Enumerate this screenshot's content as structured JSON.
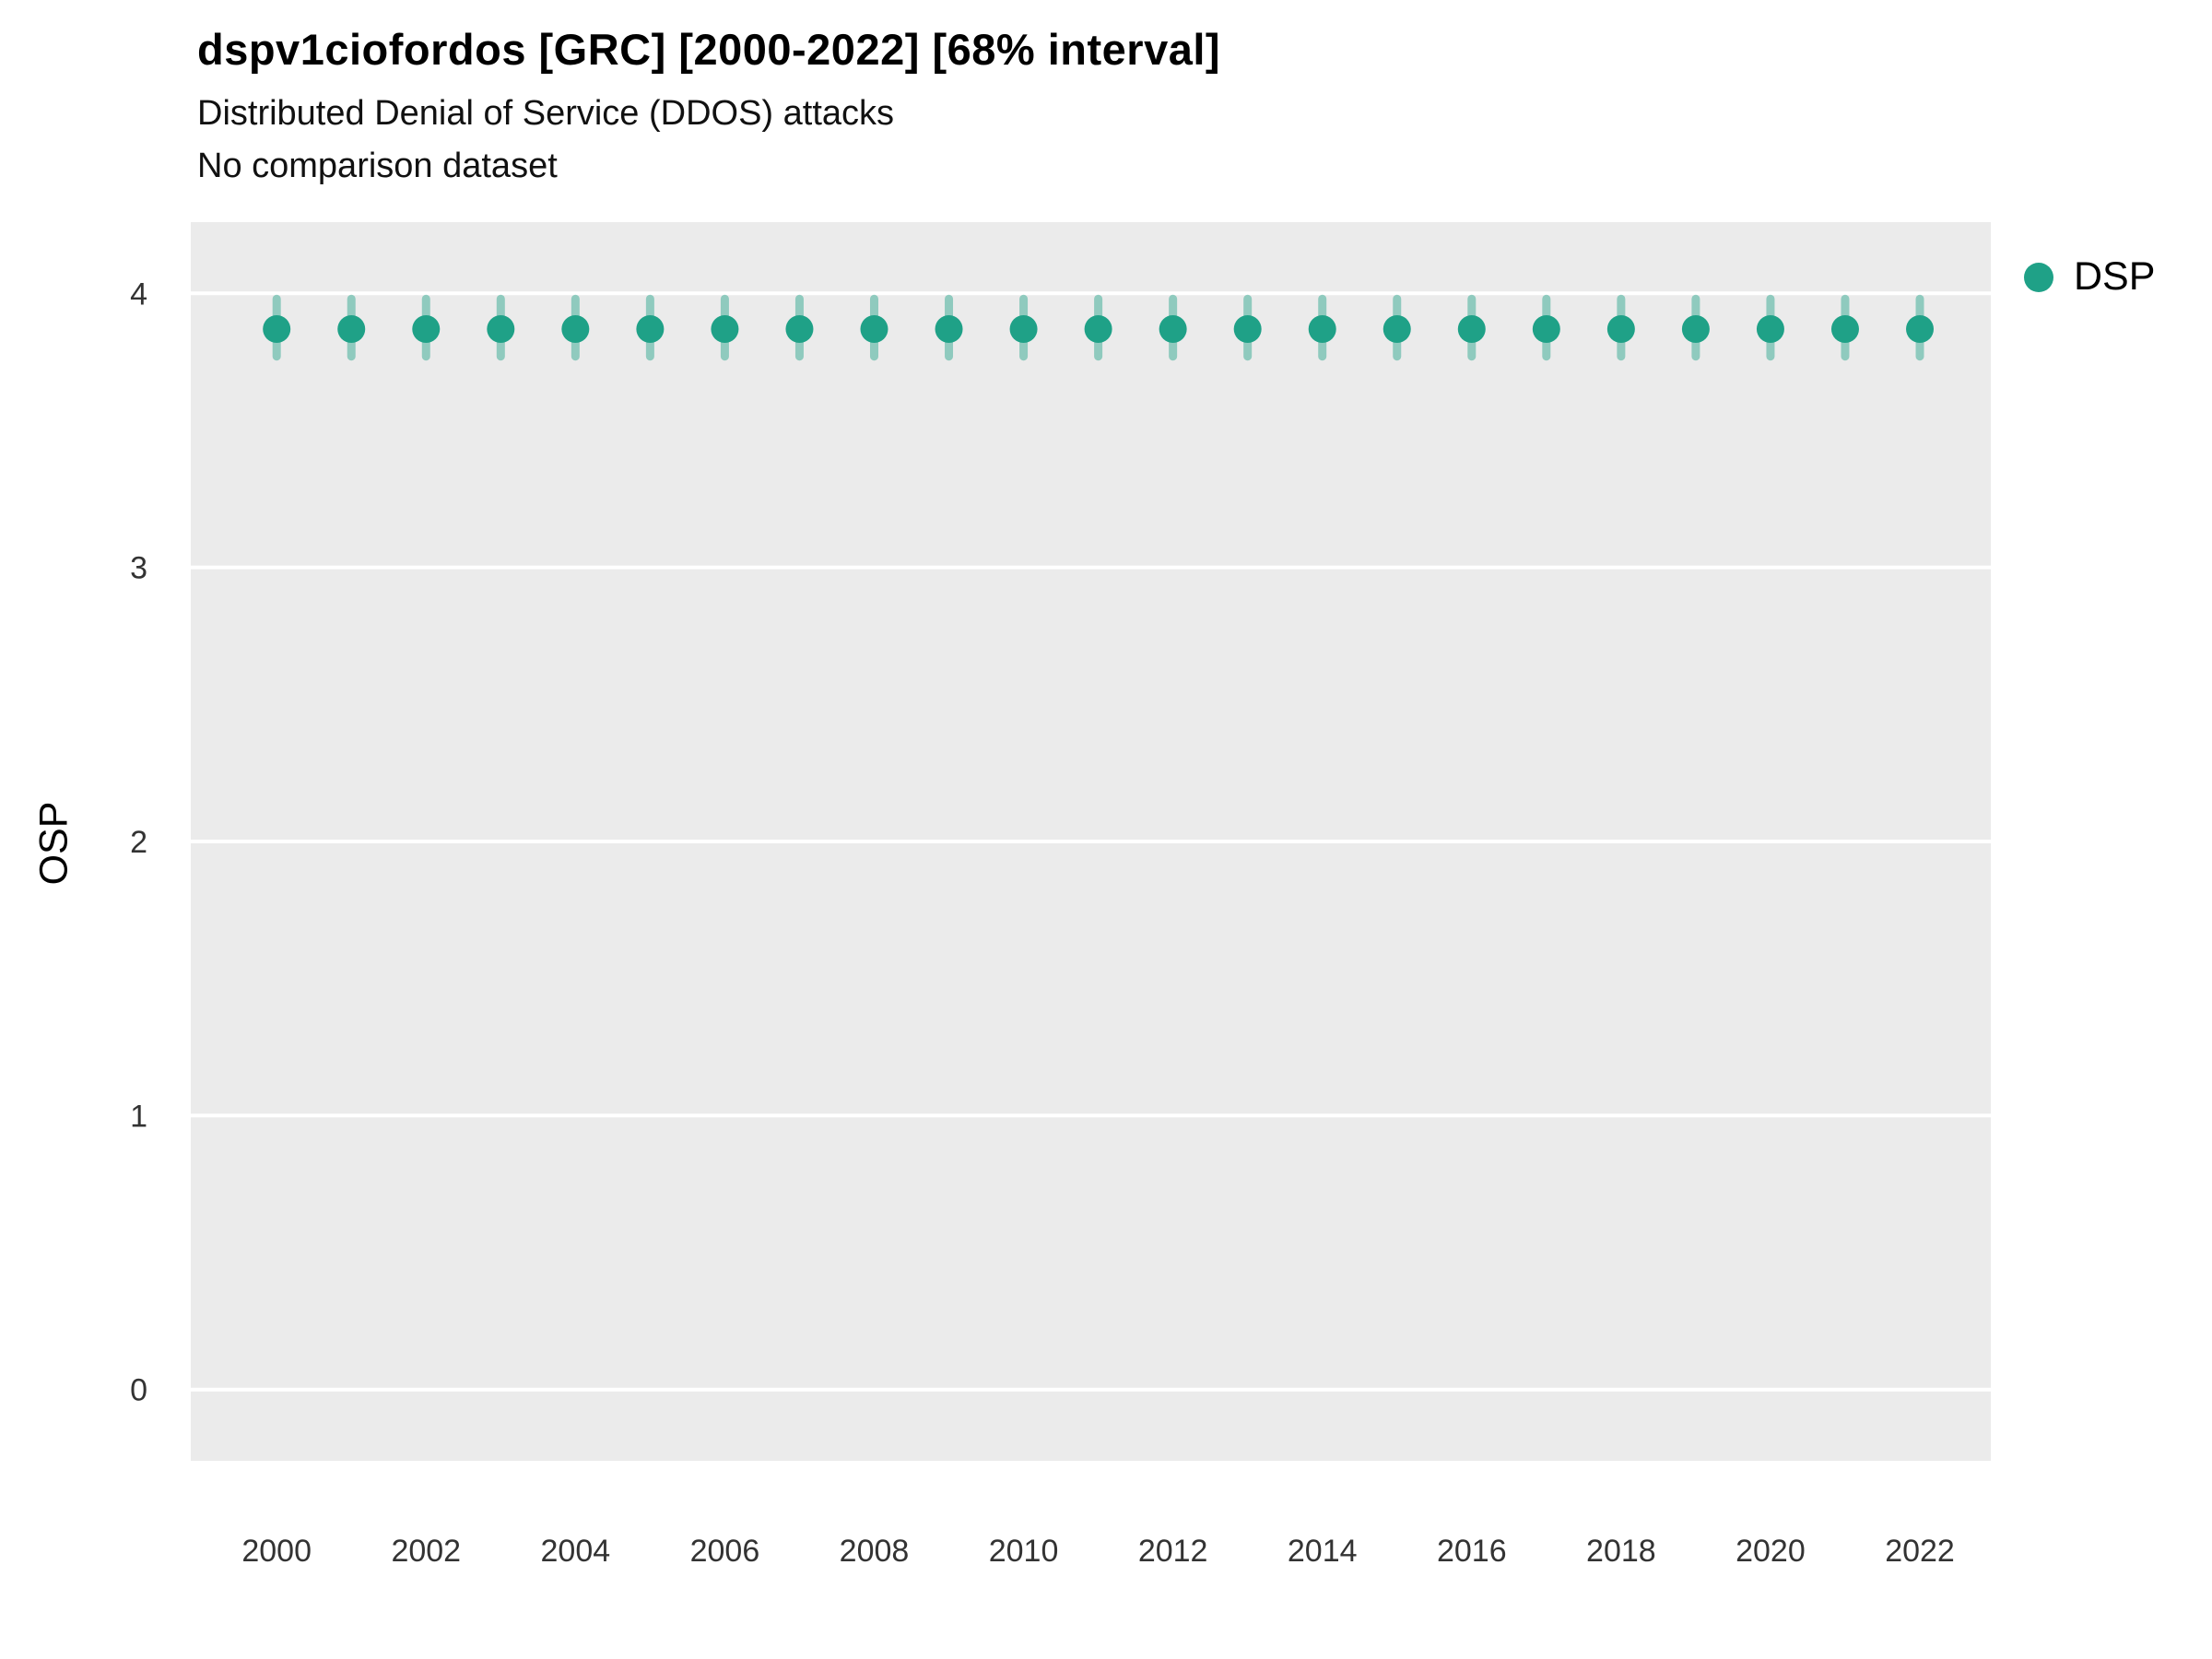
{
  "page": {
    "background": "#ffffff"
  },
  "header": {
    "title": "dspv1ciofordos [GRC] [2000-2022] [68% interval]",
    "subtitle": "Distributed Denial of Service (DDOS) attacks",
    "subtitle2": "No comparison dataset"
  },
  "chart_data": {
    "type": "scatter",
    "title": "dspv1ciofordos [GRC] [2000-2022] [68% interval]",
    "subtitle": "Distributed Denial of Service (DDOS) attacks",
    "note": "No comparison dataset",
    "xlabel": "",
    "ylabel": "OSP",
    "interval_label": "68% interval",
    "panel_bg": "#EBEBEB",
    "grid_color": "#FFFFFF",
    "grid": "on",
    "legend_position": "right",
    "xlim": [
      1998.85,
      2022.95
    ],
    "ylim": [
      -0.26,
      4.26
    ],
    "yticks": [
      0,
      1,
      2,
      3,
      4
    ],
    "xticks": [
      2000,
      2002,
      2004,
      2006,
      2008,
      2010,
      2012,
      2014,
      2016,
      2018,
      2020,
      2022
    ],
    "legend": {
      "entries": [
        {
          "label": "DSP",
          "color": "#1fa187"
        }
      ]
    },
    "series": [
      {
        "name": "DSP",
        "color": "#1fa187",
        "interval_opacity": 0.45,
        "x": [
          2000,
          2001,
          2002,
          2003,
          2004,
          2005,
          2006,
          2007,
          2008,
          2009,
          2010,
          2011,
          2012,
          2013,
          2014,
          2015,
          2016,
          2017,
          2018,
          2019,
          2020,
          2021,
          2022
        ],
        "y": [
          3.87,
          3.87,
          3.87,
          3.87,
          3.87,
          3.87,
          3.87,
          3.87,
          3.87,
          3.87,
          3.87,
          3.87,
          3.87,
          3.87,
          3.87,
          3.87,
          3.87,
          3.87,
          3.87,
          3.87,
          3.87,
          3.87,
          3.87
        ],
        "y_lo": [
          3.77,
          3.77,
          3.77,
          3.77,
          3.77,
          3.77,
          3.77,
          3.77,
          3.77,
          3.77,
          3.77,
          3.77,
          3.77,
          3.77,
          3.77,
          3.77,
          3.77,
          3.77,
          3.77,
          3.77,
          3.77,
          3.77,
          3.77
        ],
        "y_hi": [
          3.98,
          3.98,
          3.98,
          3.98,
          3.98,
          3.98,
          3.98,
          3.98,
          3.98,
          3.98,
          3.98,
          3.98,
          3.98,
          3.98,
          3.98,
          3.98,
          3.98,
          3.98,
          3.98,
          3.98,
          3.98,
          3.98,
          3.98
        ]
      }
    ]
  }
}
